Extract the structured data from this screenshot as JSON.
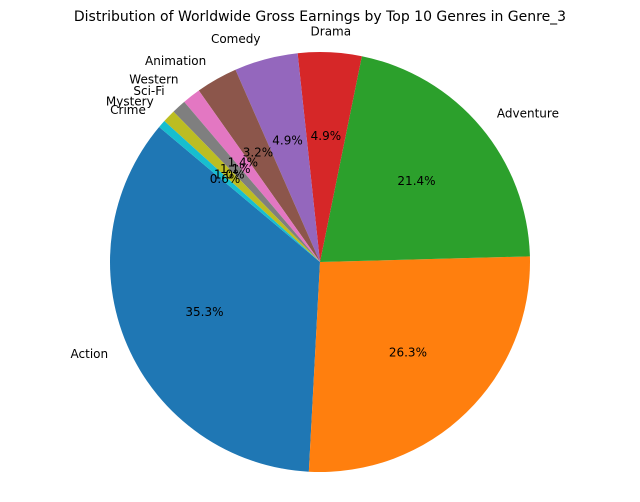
{
  "chart_data": {
    "type": "pie",
    "title": "Distribution of Worldwide Gross Earnings by Top 10 Genres in Genre_3",
    "start_angle_deg": 140,
    "slices": [
      {
        "label": "Action",
        "value": 35.3,
        "pct_label": "35.3%",
        "color": "#1f77b4"
      },
      {
        "label": "",
        "value": 26.3,
        "pct_label": "26.3%",
        "color": "#ff7f0e"
      },
      {
        "label": "Adventure",
        "value": 21.4,
        "pct_label": "21.4%",
        "color": "#2ca02c"
      },
      {
        "label": "Drama",
        "value": 4.9,
        "pct_label": "4.9%",
        "color": "#d62728"
      },
      {
        "label": "Comedy",
        "value": 4.9,
        "pct_label": "4.9%",
        "color": "#9467bd"
      },
      {
        "label": "Animation",
        "value": 3.2,
        "pct_label": "3.2%",
        "color": "#8c564b"
      },
      {
        "label": "Western",
        "value": 1.4,
        "pct_label": "1.4%",
        "color": "#e377c2"
      },
      {
        "label": "Sci-Fi",
        "value": 1.1,
        "pct_label": "1.1%",
        "color": "#7f7f7f"
      },
      {
        "label": "Mystery",
        "value": 1.0,
        "pct_label": "1.0%",
        "color": "#bcbd22"
      },
      {
        "label": "Crime",
        "value": 0.6,
        "pct_label": "0.6%",
        "color": "#17becf"
      }
    ]
  }
}
